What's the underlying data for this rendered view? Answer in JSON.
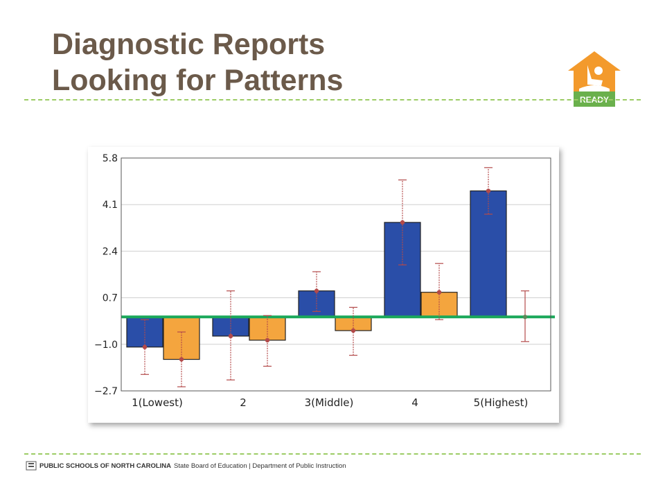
{
  "slide": {
    "title_line1": "Diagnostic Reports",
    "title_line2": "Looking for Patterns",
    "logo_text": "READY",
    "footer_org": "PUBLIC SCHOOLS OF NORTH CAROLINA",
    "footer_rest": "State Board of Education | Department of Public Instruction"
  },
  "colors": {
    "title": "#6b5a4a",
    "dash": "#9ccc65",
    "logo_orange": "#f39a2c",
    "logo_green": "#6ab04c",
    "series_blue": "#2a4ea8",
    "series_orange": "#f4a53e",
    "error_bar": "#b34a4a",
    "reference_line": "#1aa85a"
  },
  "chart_data": {
    "type": "bar",
    "categories": [
      "1(Lowest)",
      "2",
      "3(Middle)",
      "4",
      "5(Highest)"
    ],
    "yticks": [
      "5.8",
      "4.1",
      "2.4",
      "0.7",
      "−1.0",
      "−2.7"
    ],
    "ylim": [
      -2.7,
      5.8
    ],
    "reference_y": 0,
    "grid": true,
    "series": [
      {
        "values": [
          -1.1,
          -0.7,
          0.95,
          3.45,
          4.6
        ],
        "err_low": [
          -2.1,
          -2.3,
          0.2,
          1.9,
          3.75
        ],
        "err_high": [
          -0.1,
          0.95,
          1.65,
          5.0,
          5.45
        ]
      },
      {
        "values": [
          -1.55,
          -0.85,
          -0.5,
          0.9,
          null
        ],
        "err_low": [
          -2.55,
          -1.8,
          -1.4,
          -0.1,
          -0.9
        ],
        "err_high": [
          -0.55,
          0.05,
          0.35,
          1.95,
          0.95
        ],
        "point": [
          null,
          null,
          null,
          null,
          0
        ]
      }
    ]
  }
}
